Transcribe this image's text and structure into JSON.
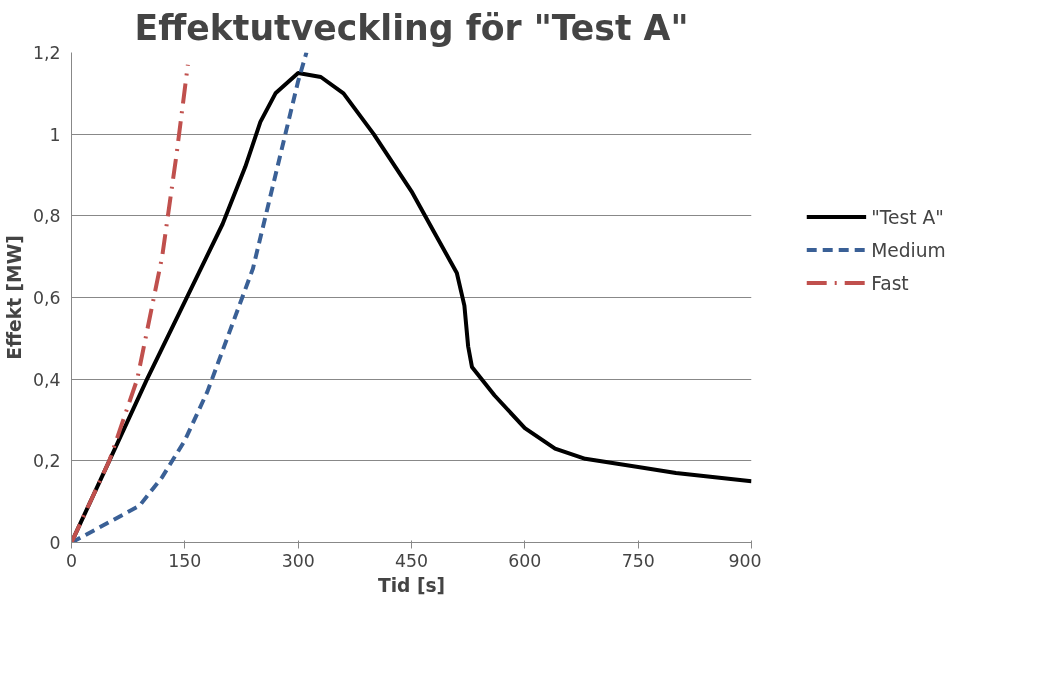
{
  "chart_data": {
    "type": "line",
    "title": "Effektutveckling för \"Test A\"",
    "xlabel": "Tid [s]",
    "ylabel": "Effekt [MW]",
    "xlim": [
      0,
      900
    ],
    "xticks": [
      0,
      150,
      300,
      450,
      600,
      750,
      900
    ],
    "ylim": [
      0,
      1.2
    ],
    "yticks": [
      0,
      {
        "value": 0.2,
        "label": "0,2"
      },
      {
        "value": 0.4,
        "label": "0,4"
      },
      {
        "value": 0.6,
        "label": "0,6"
      },
      {
        "value": 0.8,
        "label": "0,8"
      },
      1,
      {
        "value": 1.2,
        "label": "1,2"
      }
    ],
    "grid": "y",
    "legend": "right",
    "marker": "none",
    "series": [
      {
        "name": "\"Test A\"",
        "color": "#000000",
        "line_style": "solid",
        "x": [
          0,
          50,
          100,
          150,
          200,
          230,
          250,
          270,
          300,
          330,
          360,
          400,
          450,
          480,
          510,
          520,
          525,
          530,
          560,
          600,
          640,
          680,
          750,
          800,
          900
        ],
        "values": [
          0,
          0.2,
          0.4,
          0.59,
          0.78,
          0.92,
          1.03,
          1.1,
          1.15,
          1.14,
          1.1,
          1.0,
          0.86,
          0.76,
          0.66,
          0.58,
          0.48,
          0.43,
          0.36,
          0.28,
          0.23,
          0.205,
          0.185,
          0.17,
          0.15
        ]
      },
      {
        "name": "Medium",
        "color": "#3a6096",
        "line_style": "dashed",
        "x": [
          0,
          50,
          90,
          120,
          150,
          180,
          210,
          240,
          270,
          300,
          311
        ],
        "values": [
          0,
          0.05,
          0.09,
          0.16,
          0.25,
          0.37,
          0.52,
          0.67,
          0.9,
          1.13,
          1.2
        ]
      },
      {
        "name": "Fast",
        "color": "#c0504d",
        "line_style": "dashdot",
        "x": [
          0,
          50,
          87,
          120,
          139,
          154
        ],
        "values": [
          0,
          0.2,
          0.4,
          0.7,
          0.95,
          1.17
        ]
      }
    ]
  }
}
